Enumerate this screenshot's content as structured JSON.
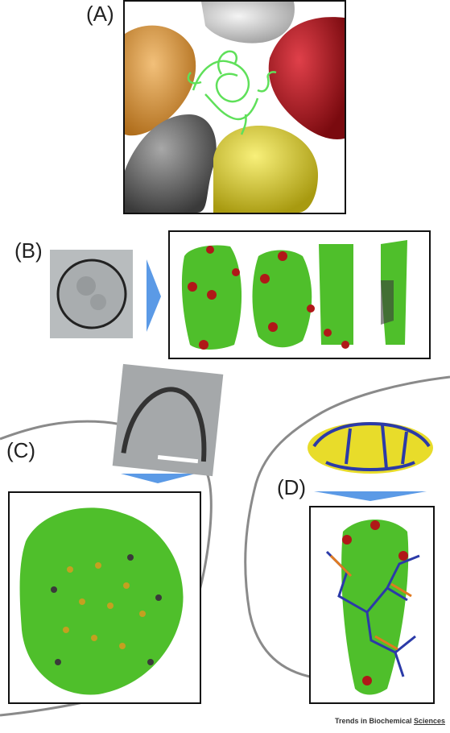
{
  "panels": {
    "a": "(A)",
    "b": "(B)",
    "c": "(C)",
    "d": "(D)"
  },
  "footer": {
    "prefix": "Trends in Biochemical ",
    "suffix": "Sciences"
  },
  "colors": {
    "capsid_green": "#4fbf2b",
    "pentamer_red": "#b01818",
    "arrow_blue": "#5b9ae6",
    "membrane_gray": "#8a8a8a",
    "surface_yellow": "#e8dc2a",
    "surface_orange": "#e0a048",
    "surface_red": "#c0161e",
    "glycoprotein_blue": "#2b3aa8",
    "glycoprotein_orange": "#e07a20"
  }
}
